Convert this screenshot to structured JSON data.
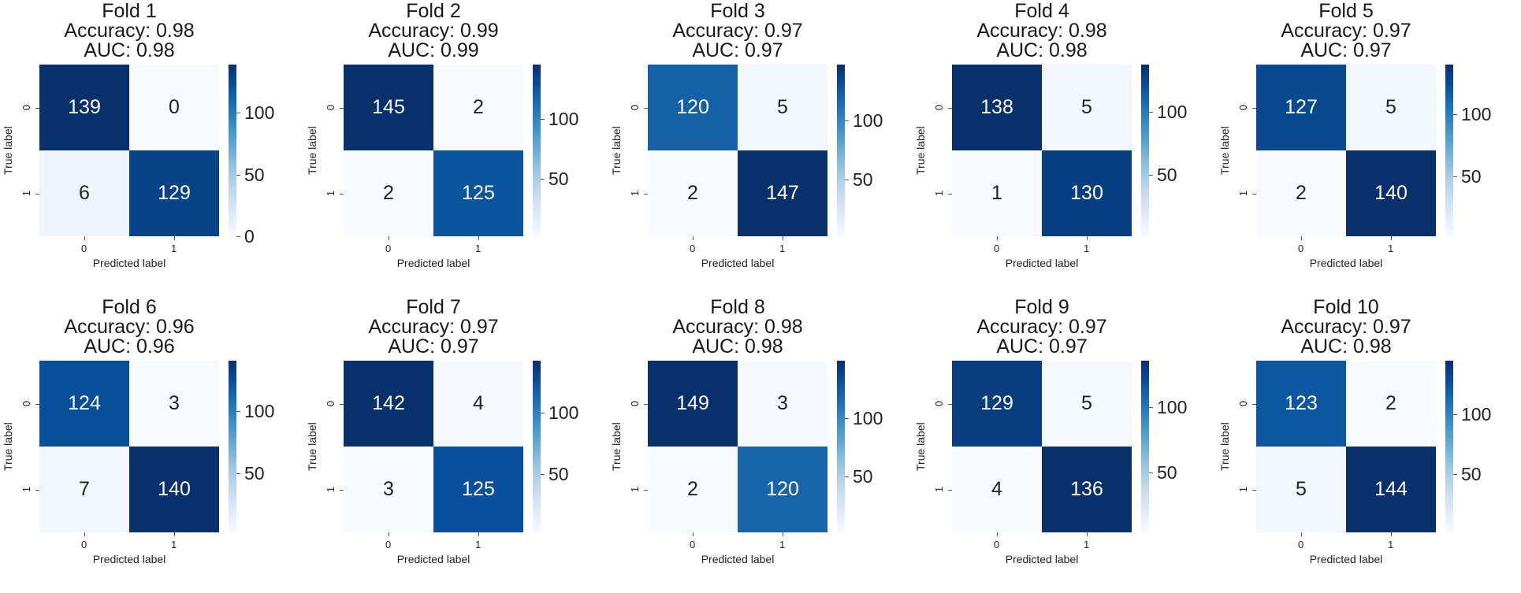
{
  "chart_data": [
    {
      "type": "heatmap",
      "title": "Fold 1",
      "accuracy_text": "Accuracy: 0.98",
      "auc_text": "AUC: 0.98",
      "matrix": [
        [
          139,
          0
        ],
        [
          6,
          129
        ]
      ],
      "xlabel": "Predicted label",
      "ylabel": "True label",
      "xticks": [
        "0",
        "1"
      ],
      "yticks": [
        "0",
        "1"
      ],
      "colorbar": {
        "vmin": 0,
        "vmax": 139,
        "ticks": [
          "0",
          "50",
          "100"
        ],
        "tick_values": [
          0,
          50,
          100
        ]
      }
    },
    {
      "type": "heatmap",
      "title": "Fold 2",
      "accuracy_text": "Accuracy: 0.99",
      "auc_text": "AUC: 0.99",
      "matrix": [
        [
          145,
          2
        ],
        [
          2,
          125
        ]
      ],
      "xlabel": "Predicted label",
      "ylabel": "True label",
      "xticks": [
        "0",
        "1"
      ],
      "yticks": [
        "0",
        "1"
      ],
      "colorbar": {
        "vmin": 2,
        "vmax": 145,
        "ticks": [
          "50",
          "100"
        ],
        "tick_values": [
          50,
          100
        ]
      }
    },
    {
      "type": "heatmap",
      "title": "Fold 3",
      "accuracy_text": "Accuracy: 0.97",
      "auc_text": "AUC: 0.97",
      "matrix": [
        [
          120,
          5
        ],
        [
          2,
          147
        ]
      ],
      "xlabel": "Predicted label",
      "ylabel": "True label",
      "xticks": [
        "0",
        "1"
      ],
      "yticks": [
        "0",
        "1"
      ],
      "colorbar": {
        "vmin": 2,
        "vmax": 147,
        "ticks": [
          "50",
          "100"
        ],
        "tick_values": [
          50,
          100
        ]
      }
    },
    {
      "type": "heatmap",
      "title": "Fold 4",
      "accuracy_text": "Accuracy: 0.98",
      "auc_text": "AUC: 0.98",
      "matrix": [
        [
          138,
          5
        ],
        [
          1,
          130
        ]
      ],
      "xlabel": "Predicted label",
      "ylabel": "True label",
      "xticks": [
        "0",
        "1"
      ],
      "yticks": [
        "0",
        "1"
      ],
      "colorbar": {
        "vmin": 1,
        "vmax": 138,
        "ticks": [
          "50",
          "100"
        ],
        "tick_values": [
          50,
          100
        ]
      }
    },
    {
      "type": "heatmap",
      "title": "Fold 5",
      "accuracy_text": "Accuracy: 0.97",
      "auc_text": "AUC: 0.97",
      "matrix": [
        [
          127,
          5
        ],
        [
          2,
          140
        ]
      ],
      "xlabel": "Predicted label",
      "ylabel": "True label",
      "xticks": [
        "0",
        "1"
      ],
      "yticks": [
        "0",
        "1"
      ],
      "colorbar": {
        "vmin": 2,
        "vmax": 140,
        "ticks": [
          "50",
          "100"
        ],
        "tick_values": [
          50,
          100
        ]
      }
    },
    {
      "type": "heatmap",
      "title": "Fold 6",
      "accuracy_text": "Accuracy: 0.96",
      "auc_text": "AUC: 0.96",
      "matrix": [
        [
          124,
          3
        ],
        [
          7,
          140
        ]
      ],
      "xlabel": "Predicted label",
      "ylabel": "True label",
      "xticks": [
        "0",
        "1"
      ],
      "yticks": [
        "0",
        "1"
      ],
      "colorbar": {
        "vmin": 3,
        "vmax": 140,
        "ticks": [
          "50",
          "100"
        ],
        "tick_values": [
          50,
          100
        ]
      }
    },
    {
      "type": "heatmap",
      "title": "Fold 7",
      "accuracy_text": "Accuracy: 0.97",
      "auc_text": "AUC: 0.97",
      "matrix": [
        [
          142,
          4
        ],
        [
          3,
          125
        ]
      ],
      "xlabel": "Predicted label",
      "ylabel": "True label",
      "xticks": [
        "0",
        "1"
      ],
      "yticks": [
        "0",
        "1"
      ],
      "colorbar": {
        "vmin": 3,
        "vmax": 142,
        "ticks": [
          "50",
          "100"
        ],
        "tick_values": [
          50,
          100
        ]
      }
    },
    {
      "type": "heatmap",
      "title": "Fold 8",
      "accuracy_text": "Accuracy: 0.98",
      "auc_text": "AUC: 0.98",
      "matrix": [
        [
          149,
          3
        ],
        [
          2,
          120
        ]
      ],
      "xlabel": "Predicted label",
      "ylabel": "True label",
      "xticks": [
        "0",
        "1"
      ],
      "yticks": [
        "0",
        "1"
      ],
      "colorbar": {
        "vmin": 2,
        "vmax": 149,
        "ticks": [
          "50",
          "100"
        ],
        "tick_values": [
          50,
          100
        ]
      }
    },
    {
      "type": "heatmap",
      "title": "Fold 9",
      "accuracy_text": "Accuracy: 0.97",
      "auc_text": "AUC: 0.97",
      "matrix": [
        [
          129,
          5
        ],
        [
          4,
          136
        ]
      ],
      "xlabel": "Predicted label",
      "ylabel": "True label",
      "xticks": [
        "0",
        "1"
      ],
      "yticks": [
        "0",
        "1"
      ],
      "colorbar": {
        "vmin": 4,
        "vmax": 136,
        "ticks": [
          "50",
          "100"
        ],
        "tick_values": [
          50,
          100
        ]
      }
    },
    {
      "type": "heatmap",
      "title": "Fold 10",
      "accuracy_text": "Accuracy: 0.97",
      "auc_text": "AUC: 0.98",
      "matrix": [
        [
          123,
          2
        ],
        [
          5,
          144
        ]
      ],
      "xlabel": "Predicted label",
      "ylabel": "True label",
      "xticks": [
        "0",
        "1"
      ],
      "yticks": [
        "0",
        "1"
      ],
      "colorbar": {
        "vmin": 2,
        "vmax": 144,
        "ticks": [
          "50",
          "100"
        ],
        "tick_values": [
          50,
          100
        ]
      }
    }
  ],
  "colormap": {
    "name": "Blues",
    "light": "#f7fbff",
    "mid": "#6baed6",
    "dark": "#08306b"
  }
}
